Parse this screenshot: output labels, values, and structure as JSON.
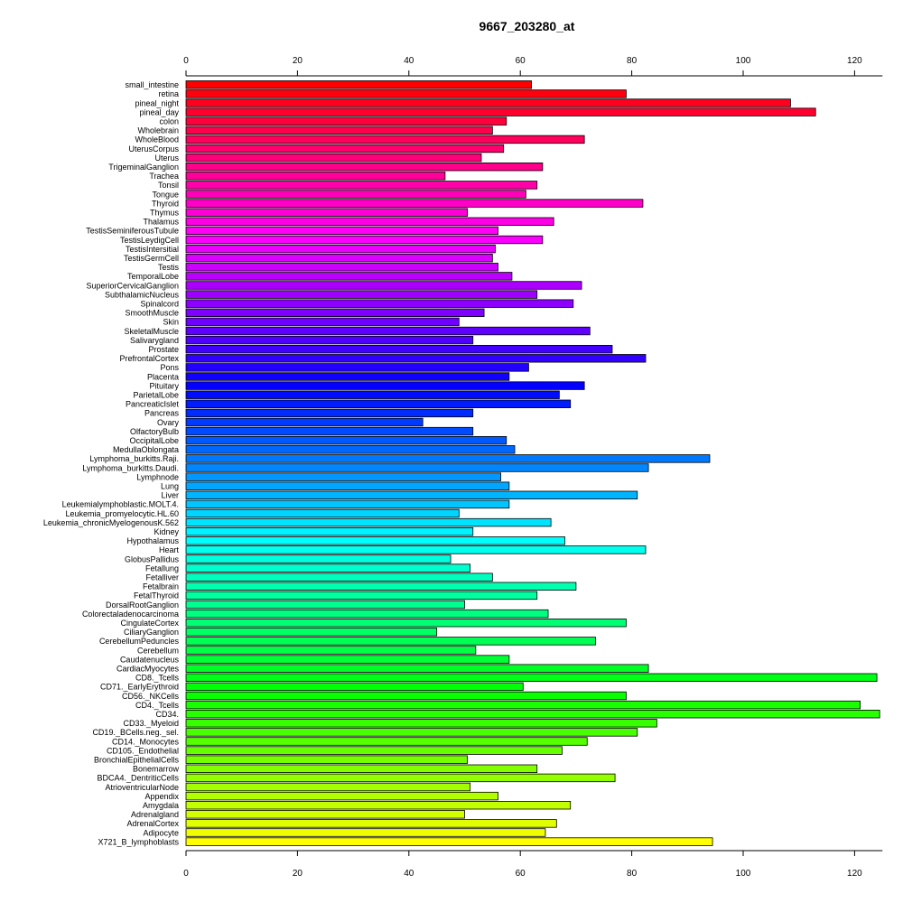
{
  "chart_data": {
    "type": "bar",
    "orientation": "horizontal",
    "title": "9667_203280_at",
    "xlabel": "",
    "ylabel": "",
    "xlim": [
      0,
      125
    ],
    "x_ticks": [
      0,
      20,
      40,
      60,
      80,
      100,
      120
    ],
    "grid": false,
    "legend": "none",
    "categories": [
      "small_intestine",
      "retina",
      "pineal_night",
      "pineal_day",
      "colon",
      "Wholebrain",
      "WholeBlood",
      "UterusCorpus",
      "Uterus",
      "TrigeminalGanglion",
      "Trachea",
      "Tonsil",
      "Tongue",
      "Thyroid",
      "Thymus",
      "Thalamus",
      "TestisSeminiferousTubule",
      "TestisLeydigCell",
      "TestisIntersitial",
      "TestisGermCell",
      "Testis",
      "TemporalLobe",
      "SuperiorCervicalGanglion",
      "SubthalamicNucleus",
      "Spinalcord",
      "SmoothMuscle",
      "Skin",
      "SkeletalMuscle",
      "Salivarygland",
      "Prostate",
      "PrefrontalCortex",
      "Pons",
      "Placenta",
      "Pituitary",
      "ParietalLobe",
      "PancreaticIslet",
      "Pancreas",
      "Ovary",
      "OlfactoryBulb",
      "OccipitalLobe",
      "MedullaOblongata",
      "Lymphoma_burkitts.Raji.",
      "Lymphoma_burkitts.Daudi.",
      "Lymphnode",
      "Lung",
      "Liver",
      "Leukemialymphoblastic.MOLT.4.",
      "Leukemia_promyelocytic.HL.60",
      "Leukemia_chronicMyelogenousK.562",
      "Kidney",
      "Hypothalamus",
      "Heart",
      "GlobusPallidus",
      "Fetallung",
      "Fetalliver",
      "Fetalbrain",
      "FetalThyroid",
      "DorsalRootGanglion",
      "Colorectaladenocarcinoma",
      "CingulateCortex",
      "CiliaryGanglion",
      "CerebellumPeduncles",
      "Cerebellum",
      "Caudatenucleus",
      "CardiacMyocytes",
      "CD8._Tcells",
      "CD71._EarlyErythroid",
      "CD56._NKCells",
      "CD4._Tcells",
      "CD34.",
      "CD33._Myeloid",
      "CD19._BCells.neg._sel.",
      "CD14._Monocytes",
      "CD105._Endothelial",
      "BronchialEpithelialCells",
      "Bonemarrow",
      "BDCA4._DentriticCells",
      "AtrioventricularNode",
      "Appendix",
      "Amygdala",
      "Adrenalgland",
      "AdrenalCortex",
      "Adipocyte",
      "X721_B_lymphoblasts"
    ],
    "values": [
      62,
      79,
      108.5,
      113,
      57.5,
      55,
      71.5,
      57,
      53,
      64,
      46.5,
      63,
      61,
      82,
      50.5,
      66,
      56,
      64,
      55.5,
      55,
      56,
      58.5,
      71,
      63,
      69.5,
      53.5,
      49,
      72.5,
      51.5,
      76.5,
      82.5,
      61.5,
      58,
      71.5,
      67,
      69,
      51.5,
      42.5,
      51.5,
      57.5,
      59,
      94,
      83,
      56.5,
      58,
      81,
      58,
      49,
      65.5,
      51.5,
      68,
      82.5,
      47.5,
      51,
      55,
      70,
      63,
      50,
      65,
      79,
      45,
      73.5,
      52,
      58,
      83,
      124,
      60.5,
      79,
      121,
      124.5,
      84.5,
      81,
      72,
      67.5,
      50.5,
      63,
      77,
      51,
      56,
      69,
      50,
      66.5,
      64.5,
      94.5
    ],
    "colors": [
      "#ff0000",
      "#ff00ff",
      "#0000ff",
      "#00ffff",
      "#00ff00",
      "#ffff00"
    ]
  }
}
